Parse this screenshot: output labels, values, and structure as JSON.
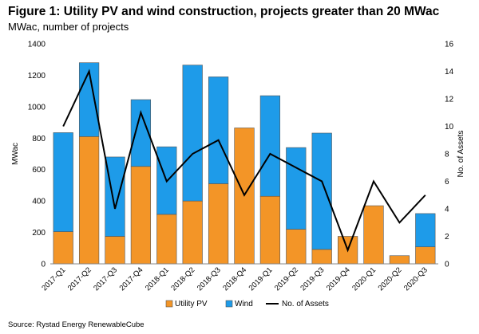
{
  "header": {
    "title": "Figure 1: Utility PV and wind construction, projects greater than 20 MWac",
    "subtitle": "MWac, number of projects"
  },
  "footer": {
    "source": "Source: Rystad Energy RenewableCube"
  },
  "chart_data": {
    "type": "bar",
    "stacked": true,
    "categories": [
      "2017-Q1",
      "2017-Q2",
      "2017-Q3",
      "2017-Q4",
      "2018-Q1",
      "2018-Q2",
      "2018-Q3",
      "2018-Q4",
      "2019-Q1",
      "2019-Q2",
      "2019-Q3",
      "2019-Q4",
      "2020-Q1",
      "2020-Q2",
      "2020-Q3"
    ],
    "series": [
      {
        "name": "Utility PV",
        "kind": "bar",
        "axis": "left",
        "color": "#F39527",
        "values": [
          205,
          810,
          175,
          620,
          315,
          400,
          510,
          865,
          430,
          220,
          92,
          175,
          370,
          52,
          108
        ]
      },
      {
        "name": "Wind",
        "kind": "bar",
        "axis": "left",
        "color": "#1E9BE9",
        "values": [
          630,
          470,
          505,
          425,
          430,
          865,
          680,
          0,
          640,
          520,
          740,
          0,
          0,
          0,
          212
        ]
      },
      {
        "name": "No. of Assets",
        "kind": "line",
        "axis": "right",
        "color": "#000000",
        "values": [
          10,
          14,
          4,
          11,
          6,
          8,
          9,
          5,
          8,
          7,
          6,
          1,
          6,
          3,
          5
        ]
      }
    ],
    "ylabel": "MWac",
    "y2label": "No. of Assets",
    "ylim": [
      0,
      1400
    ],
    "y2lim": [
      0,
      16
    ],
    "yticks": [
      0,
      200,
      400,
      600,
      800,
      1000,
      1200,
      1400
    ],
    "y2ticks": [
      0,
      2,
      4,
      6,
      8,
      10,
      12,
      14,
      16
    ],
    "grid": false,
    "legend": {
      "position": "bottom",
      "entries": [
        "Utility PV",
        "Wind",
        "No. of Assets"
      ]
    }
  }
}
